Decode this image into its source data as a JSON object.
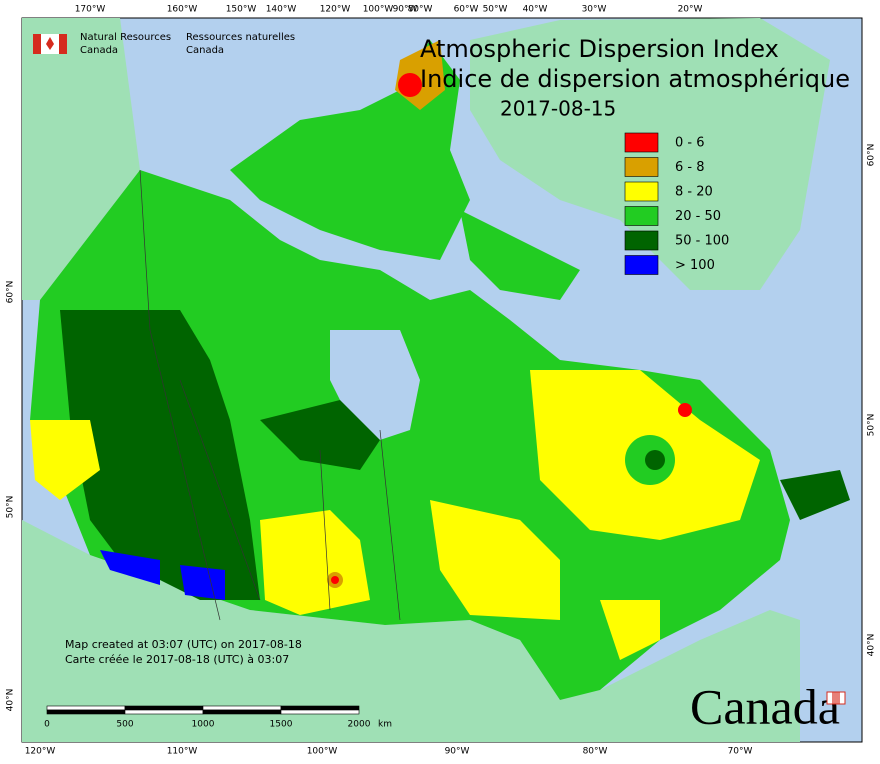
{
  "header": {
    "org_en": "Natural Resources",
    "org_en2": "Canada",
    "org_fr": "Ressources naturelles",
    "org_fr2": "Canada"
  },
  "title": [
    "Atmospheric Dispersion Index",
    "Indice de dispersion atmosphérique"
  ],
  "date": "2017-08-15",
  "legend": [
    {
      "label": "0 - 6",
      "color": "#ff0000"
    },
    {
      "label": "6 - 8",
      "color": "#d9a000"
    },
    {
      "label": "8 - 20",
      "color": "#ffff00"
    },
    {
      "label": "20 - 50",
      "color": "#22cc22"
    },
    {
      "label": "50 - 100",
      "color": "#006400"
    },
    {
      "label": "> 100",
      "color": "#0000ff"
    }
  ],
  "top_labels": [
    "170°W",
    "160°W",
    "150°W",
    "140°W",
    "120°W",
    "100°W",
    "90°W",
    "80°W",
    "60°W",
    "50°W",
    "40°W",
    "30°W",
    "20°W"
  ],
  "bottom_labels": [
    "120°W",
    "110°W",
    "100°W",
    "90°W",
    "80°W",
    "70°W"
  ],
  "left_labels": [
    "60°N",
    "50°N",
    "40°N"
  ],
  "right_labels": [
    "60°N",
    "50°N",
    "40°N"
  ],
  "footer": {
    "created_en": "Map created at 03:07 (UTC) on 2017-08-18",
    "created_fr": "Carte créée le 2017-08-18 (UTC) à 03:07"
  },
  "scale": {
    "labels": [
      "0",
      "500",
      "1000",
      "1500",
      "2000"
    ],
    "unit": "km"
  },
  "wordmark": "Canada"
}
